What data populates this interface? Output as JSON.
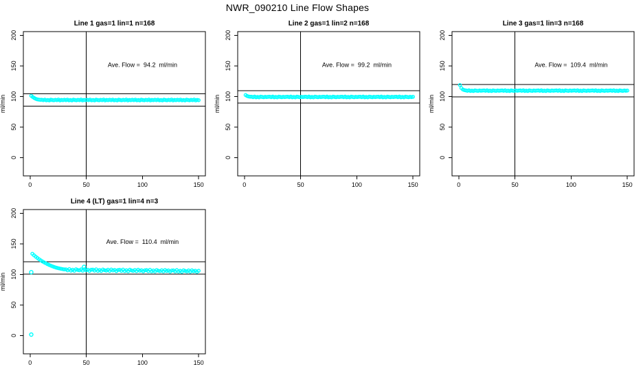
{
  "figure": {
    "title": "NWR_090210  Line Flow Shapes"
  },
  "colors": {
    "marker": "#00FFFF",
    "axis": "#000000",
    "background": "#ffffff"
  },
  "chart_data": [
    {
      "type": "scatter",
      "title": "Line 1 gas=1 lin=1 n=168",
      "xlabel": "",
      "ylabel": "ml/min",
      "xlim": [
        -6,
        156
      ],
      "ylim": [
        -30,
        206
      ],
      "xticks": [
        0,
        50,
        100,
        150
      ],
      "yticks": [
        0,
        50,
        100,
        150,
        200
      ],
      "grid": false,
      "legend": "none",
      "avg_flow": 94.2,
      "annotation": {
        "text": "Ave. Flow =  94.2  ml/min",
        "x": 100,
        "y": 148
      },
      "hlines": [
        104.2,
        84.2
      ],
      "vlines": [
        50
      ],
      "marker_color": "#00FFFF",
      "series": {
        "name": "flow",
        "x_start": 1,
        "x_end": 150,
        "y": [
          100.9,
          99.0,
          97.4,
          96.1,
          95.2,
          94.7,
          94.4,
          94.5,
          93.8,
          94.7,
          93.6,
          94.2,
          93.5,
          94.6,
          94.1,
          93.7,
          94.4,
          93.9,
          94.8,
          93.5,
          94.3,
          93.8,
          94.5,
          93.8,
          94.7,
          93.6,
          94.2,
          93.5,
          94.6,
          94.1,
          93.7,
          94.4,
          93.9,
          94.8,
          93.5,
          94.3,
          93.8,
          94.5,
          93.8,
          94.7,
          93.6,
          94.2,
          93.5,
          94.6,
          94.1,
          93.7,
          94.4,
          93.9,
          94.8,
          93.5,
          94.3,
          93.8,
          94.5,
          93.8,
          94.7,
          93.6,
          94.2,
          93.5,
          94.6,
          94.1,
          93.7,
          94.4,
          93.9,
          94.8,
          93.5,
          94.3,
          93.8,
          94.5,
          93.8,
          94.7,
          93.6,
          94.2,
          93.5,
          94.6,
          94.1,
          93.7,
          94.4,
          93.9,
          94.8,
          93.5,
          94.3,
          93.8,
          94.5,
          93.8,
          94.7,
          93.6,
          94.2,
          93.5,
          94.6,
          94.1,
          93.7,
          94.4,
          93.9,
          94.8,
          93.5,
          94.3,
          93.8,
          94.5,
          93.8,
          94.7,
          93.6,
          94.2,
          93.5,
          94.6,
          94.1,
          93.7,
          94.4,
          93.9,
          94.8,
          93.5,
          94.3,
          93.8
        ]
      },
      "extra_points": []
    },
    {
      "type": "scatter",
      "title": "Line 2 gas=1 lin=2 n=168",
      "xlabel": "",
      "ylabel": "ml/min",
      "xlim": [
        -6,
        156
      ],
      "ylim": [
        -30,
        206
      ],
      "xticks": [
        0,
        50,
        100,
        150
      ],
      "yticks": [
        0,
        50,
        100,
        150,
        200
      ],
      "grid": false,
      "legend": "none",
      "avg_flow": 99.2,
      "annotation": {
        "text": "Ave. Flow =  99.2  ml/min",
        "x": 100,
        "y": 148
      },
      "hlines": [
        109.2,
        89.2
      ],
      "vlines": [
        50
      ],
      "marker_color": "#00FFFF",
      "series": {
        "name": "flow",
        "x_start": 1,
        "x_end": 150,
        "y": [
          102.3,
          100.7,
          99.9,
          99.5,
          99.5,
          98.8,
          99.7,
          98.6,
          99.2,
          98.5,
          99.6,
          99.1,
          98.7,
          99.4,
          98.9,
          99.3,
          99.5,
          98.8,
          99.7,
          98.6,
          99.2,
          98.5,
          99.6,
          99.1,
          98.7,
          99.4,
          98.9,
          99.3,
          99.5,
          98.8,
          99.7,
          98.6,
          99.2,
          98.5,
          99.6,
          99.1,
          98.7,
          99.4,
          98.9,
          99.3,
          99.5,
          98.8,
          99.7,
          98.6,
          99.2,
          98.5,
          99.6,
          99.1,
          98.7,
          99.4,
          98.9,
          99.3,
          99.5,
          98.8,
          99.7,
          98.6,
          99.2,
          98.5,
          99.6,
          99.1,
          98.7,
          99.4,
          98.9,
          99.3,
          99.5,
          98.8,
          99.7,
          98.6,
          99.2,
          98.5,
          99.6,
          99.1,
          98.7,
          99.4,
          98.9,
          99.3,
          99.5,
          98.8,
          99.7,
          98.6,
          99.2,
          98.5,
          99.6,
          99.1,
          98.7,
          99.4,
          98.9,
          99.3,
          99.5,
          98.8,
          99.7,
          98.6,
          99.2,
          98.5,
          99.6,
          99.1,
          98.7,
          99.4,
          98.9,
          99.3,
          99.5,
          98.8,
          99.7,
          98.6,
          99.2,
          98.5,
          99.6,
          99.1,
          98.7,
          99.4,
          98.9,
          99.3
        ]
      },
      "extra_points": []
    },
    {
      "type": "scatter",
      "title": "Line 3 gas=1 lin=3 n=168",
      "xlabel": "",
      "ylabel": "ml/min",
      "xlim": [
        -6,
        156
      ],
      "ylim": [
        -30,
        206
      ],
      "xticks": [
        0,
        50,
        100,
        150
      ],
      "yticks": [
        0,
        50,
        100,
        150,
        200
      ],
      "grid": false,
      "legend": "none",
      "avg_flow": 109.4,
      "annotation": {
        "text": "Ave. Flow =  109.4  ml/min",
        "x": 100,
        "y": 148
      },
      "hlines": [
        119.4,
        99.4
      ],
      "vlines": [
        50
      ],
      "marker_color": "#00FFFF",
      "series": {
        "name": "flow",
        "x_start": 1,
        "x_end": 150,
        "y": [
          118.6,
          113.6,
          111.3,
          110.3,
          109.8,
          109.1,
          110.0,
          108.9,
          109.5,
          108.8,
          109.9,
          109.4,
          109.0,
          109.7,
          109.2,
          109.6,
          109.8,
          109.1,
          110.0,
          108.9,
          109.5,
          108.8,
          109.9,
          109.4,
          109.0,
          109.7,
          109.2,
          109.6,
          109.8,
          109.1,
          110.0,
          108.9,
          109.5,
          108.8,
          109.9,
          109.4,
          109.0,
          109.7,
          109.2,
          109.6,
          109.8,
          109.1,
          110.0,
          108.9,
          109.5,
          108.8,
          109.9,
          109.4,
          109.0,
          109.7,
          109.2,
          109.6,
          109.8,
          109.1,
          110.0,
          108.9,
          109.5,
          108.8,
          109.9,
          109.4,
          109.0,
          109.7,
          109.2,
          109.6,
          109.8,
          109.1,
          110.0,
          108.9,
          109.5,
          108.8,
          109.9,
          109.4,
          109.0,
          109.7,
          109.2,
          109.6,
          109.8,
          109.1,
          110.0,
          108.9,
          109.5,
          108.8,
          109.9,
          109.4,
          109.0,
          109.7,
          109.2,
          109.6,
          109.8,
          109.1,
          110.0,
          108.9,
          109.5,
          108.8,
          109.9,
          109.4,
          109.0,
          109.7,
          109.2,
          109.6,
          109.8,
          109.1,
          110.0,
          108.9,
          109.5,
          108.8,
          109.9,
          109.4,
          109.0,
          109.7,
          109.2,
          109.6
        ]
      },
      "extra_points": []
    },
    {
      "type": "scatter",
      "title": "Line 4 (LT) gas=1 lin=4 n=3",
      "xlabel": "",
      "ylabel": "ml/min",
      "xlim": [
        -6,
        156
      ],
      "ylim": [
        -30,
        206
      ],
      "xticks": [
        0,
        50,
        100,
        150
      ],
      "yticks": [
        0,
        50,
        100,
        150,
        200
      ],
      "grid": false,
      "legend": "none",
      "avg_flow": 110.4,
      "annotation": {
        "text": "Ave. Flow =  110.4  ml/min",
        "x": 100,
        "y": 150
      },
      "hlines": [
        120.4,
        100.4
      ],
      "vlines": [
        50
      ],
      "marker_color": "#00FFFF",
      "series": {
        "name": "flow",
        "x_start": 2,
        "x_end": 150,
        "y": [
          133.6,
          131.2,
          128.9,
          126.8,
          124.8,
          122.9,
          121.2,
          119.6,
          118.1,
          116.7,
          115.4,
          114.2,
          113.1,
          112.1,
          111.2,
          110.4,
          109.7,
          109.1,
          108.6,
          108.1,
          108.2,
          106.5,
          108.6,
          106.1,
          107.6,
          105.9,
          108.3,
          107.2,
          106.5,
          108.1,
          106.0,
          108.3,
          106.7,
          107.7,
          105.7,
          107.5,
          107.8,
          106.1,
          108.2,
          105.7,
          107.2,
          105.5,
          107.9,
          106.8,
          106.1,
          107.7,
          105.6,
          107.9,
          106.3,
          107.3,
          105.3,
          107.1,
          107.4,
          105.6,
          107.8,
          105.3,
          106.8,
          105.0,
          107.5,
          106.4,
          105.7,
          107.2,
          105.2,
          107.5,
          105.9,
          106.8,
          104.9,
          106.7,
          107.0,
          105.2,
          107.4,
          104.9,
          106.3,
          104.6,
          107.1,
          106.0,
          105.2,
          106.8,
          104.8,
          107.1,
          105.4,
          106.4,
          104.5,
          106.3,
          106.5,
          104.8,
          107.0,
          104.5,
          105.9,
          104.2,
          106.7,
          105.6,
          104.8,
          106.4,
          104.4,
          106.7,
          105.0,
          106.0,
          104.1,
          105.9
        ]
      },
      "extra_points": [
        [
          1,
          103.5
        ],
        [
          1,
          1.5
        ],
        [
          48,
          112.2
        ]
      ]
    }
  ]
}
